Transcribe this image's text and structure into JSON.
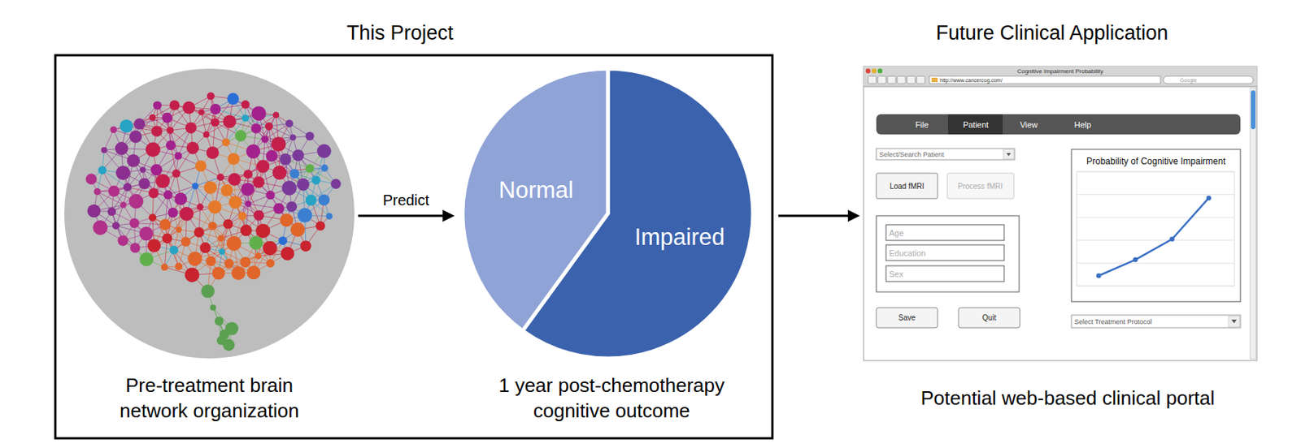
{
  "diagram": {
    "project": {
      "title": "This Project",
      "input_label": [
        "Pre-treatment brain",
        "network organization"
      ],
      "arrow_label": "Predict",
      "output_label": [
        "1 year post-chemotherapy",
        "cognitive outcome"
      ]
    },
    "future": {
      "title": "Future Clinical Application",
      "caption": "Potential web-based clinical portal"
    },
    "portal": {
      "window_title": "Cognitive Impairment Probability",
      "url": "http://www.cancercog.com/",
      "search": "Google",
      "menu": [
        "File",
        "Patient",
        "View",
        "Help"
      ],
      "patient_select": "Select/Search Patient",
      "buttons": [
        "Load fMRI",
        "Process fMRI"
      ],
      "fields": [
        "Age",
        "Education",
        "Sex"
      ],
      "actions": [
        "Save",
        "Quit"
      ],
      "protocol_select": "Select Treatment Protocol"
    }
  },
  "chart_data": [
    {
      "type": "pie",
      "categories": [
        "Normal",
        "Impaired"
      ],
      "values": [
        40,
        60
      ],
      "colors": [
        "#8fa3d6",
        "#3b62ad"
      ]
    },
    {
      "type": "line",
      "title": "Probability of Cognitive Impairment",
      "x": [
        1,
        2,
        3,
        4
      ],
      "values": [
        9,
        23,
        41,
        77
      ],
      "xlim": [
        0.4,
        4.7
      ],
      "ylim": [
        0,
        100
      ],
      "yticks": [
        0,
        20,
        40,
        60,
        80,
        100
      ],
      "grid": true,
      "tick_labels": false,
      "color": "#3a6fc4",
      "marker": "circle"
    }
  ]
}
